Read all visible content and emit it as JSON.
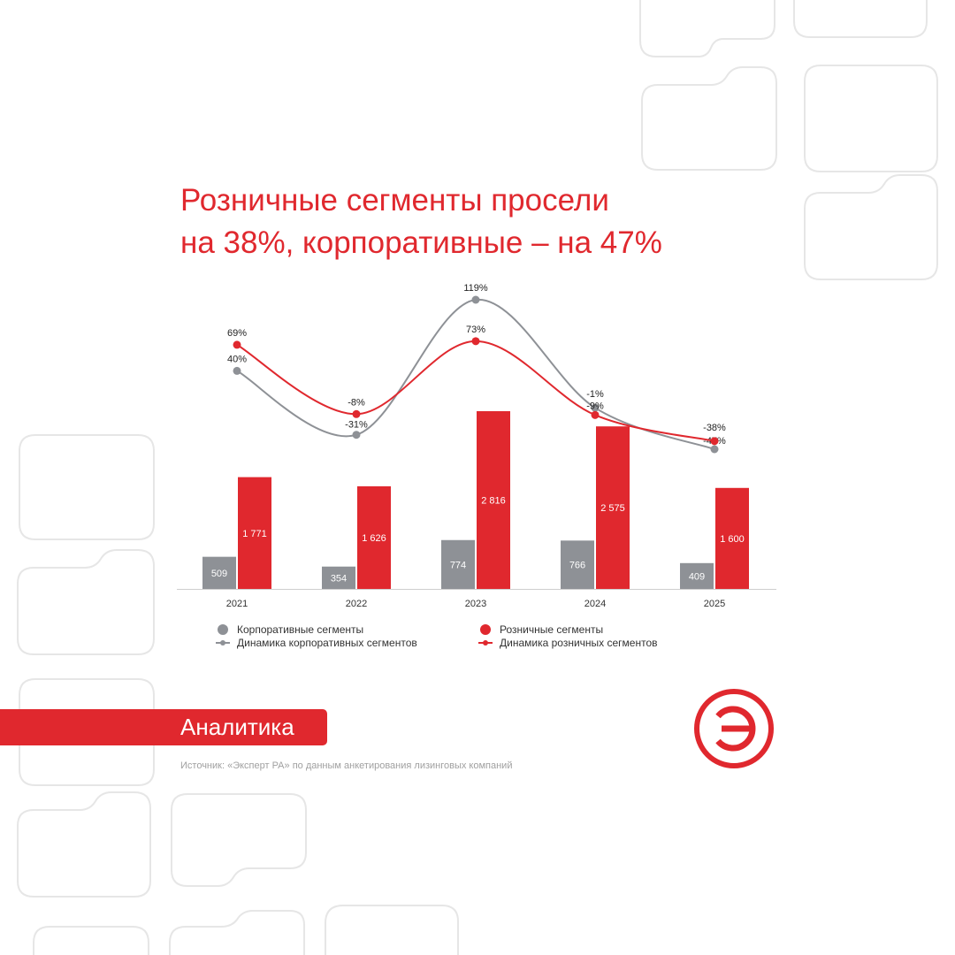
{
  "title": {
    "line1": "Розничные сегменты просели",
    "line2": "на 38%, корпоративные – на 47%"
  },
  "chart_data": {
    "type": "bar",
    "categories": [
      "2021",
      "2022",
      "2023",
      "2024",
      "2025"
    ],
    "series": [
      {
        "name": "Корпоративные сегменты",
        "kind": "bar",
        "color": "#8e9196",
        "values": [
          509,
          354,
          774,
          766,
          409
        ],
        "labels": [
          "509",
          "354",
          "774",
          "766",
          "409"
        ]
      },
      {
        "name": "Розничные сегменты",
        "kind": "bar",
        "color": "#e0282e",
        "values": [
          1771,
          1626,
          2816,
          2575,
          1600
        ],
        "labels": [
          "1 771",
          "1 626",
          "2 816",
          "2 575",
          "1 600"
        ]
      },
      {
        "name": "Динамика корпоративных сегментов",
        "kind": "line",
        "color": "#8e9196",
        "values": [
          40,
          -31,
          119,
          -1,
          -47
        ],
        "labels": [
          "40%",
          "-31%",
          "119%",
          "-1%",
          "-47%"
        ]
      },
      {
        "name": "Динамика розничных сегментов",
        "kind": "line",
        "color": "#e0282e",
        "values": [
          69,
          -8,
          73,
          -9,
          -38
        ],
        "labels": [
          "69%",
          "-8%",
          "73%",
          "-9%",
          "-38%"
        ]
      }
    ],
    "legend_position": "bottom",
    "grid": false
  },
  "legend": {
    "corp_bars": "Корпоративные сегменты",
    "retail_bars": "Розничные сегменты",
    "corp_line": "Динамика корпоративных сегментов",
    "retail_line": "Динамика розничных сегментов"
  },
  "badge": {
    "label": "Аналитика"
  },
  "source": "Источник: «Эксперт РА» по данным анкетирования лизинговых компаний",
  "logo": {
    "icon": "expert-ra-logo-icon",
    "letter": "Э"
  },
  "colors": {
    "accent": "#e0282e",
    "corporate": "#8e9196",
    "decor": "#e6e6e6"
  }
}
